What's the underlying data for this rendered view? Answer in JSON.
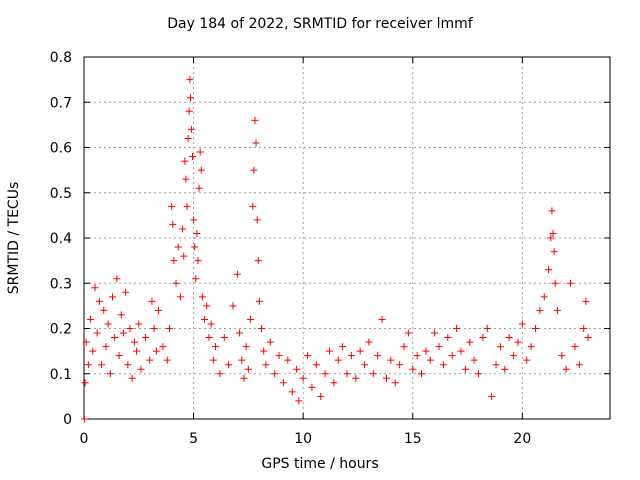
{
  "chart_data": {
    "type": "scatter",
    "title": "Day 184 of 2022, SRMTID for receiver lmmf",
    "xlabel": "GPS time / hours",
    "ylabel": "SRMTID / TECUs",
    "xlim": [
      0,
      24
    ],
    "ylim": [
      0,
      0.8
    ],
    "xticks": [
      0,
      5,
      10,
      15,
      20
    ],
    "yticks": [
      0,
      0.1,
      0.2,
      0.3,
      0.4,
      0.5,
      0.6,
      0.7,
      0.8
    ],
    "xtick_labels": [
      "0",
      "5",
      "10",
      "15",
      "20"
    ],
    "ytick_labels": [
      "0",
      "0.1",
      "0.2",
      "0.3",
      "0.4",
      "0.5",
      "0.6",
      "0.7",
      "0.8"
    ],
    "grid": true,
    "marker": "+",
    "color": "#ff0000",
    "x_data_range": [
      0,
      23.0
    ],
    "series": [
      {
        "name": "SRMTID",
        "points": [
          [
            0.02,
            0.0
          ],
          [
            0.05,
            0.08
          ],
          [
            0.1,
            0.17
          ],
          [
            0.2,
            0.12
          ],
          [
            0.3,
            0.22
          ],
          [
            0.4,
            0.15
          ],
          [
            0.5,
            0.29
          ],
          [
            0.6,
            0.19
          ],
          [
            0.7,
            0.26
          ],
          [
            0.8,
            0.12
          ],
          [
            0.9,
            0.24
          ],
          [
            1.0,
            0.16
          ],
          [
            1.1,
            0.21
          ],
          [
            1.2,
            0.1
          ],
          [
            1.3,
            0.27
          ],
          [
            1.4,
            0.18
          ],
          [
            1.5,
            0.31
          ],
          [
            1.6,
            0.14
          ],
          [
            1.7,
            0.23
          ],
          [
            1.8,
            0.19
          ],
          [
            1.9,
            0.28
          ],
          [
            2.0,
            0.12
          ],
          [
            2.1,
            0.2
          ],
          [
            2.2,
            0.09
          ],
          [
            2.3,
            0.17
          ],
          [
            2.4,
            0.15
          ],
          [
            2.5,
            0.21
          ],
          [
            2.6,
            0.11
          ],
          [
            2.8,
            0.18
          ],
          [
            3.0,
            0.13
          ],
          [
            3.1,
            0.26
          ],
          [
            3.2,
            0.2
          ],
          [
            3.3,
            0.15
          ],
          [
            3.4,
            0.24
          ],
          [
            3.6,
            0.16
          ],
          [
            3.8,
            0.13
          ],
          [
            3.9,
            0.2
          ],
          [
            4.0,
            0.47
          ],
          [
            4.05,
            0.43
          ],
          [
            4.1,
            0.35
          ],
          [
            4.2,
            0.3
          ],
          [
            4.3,
            0.38
          ],
          [
            4.4,
            0.27
          ],
          [
            4.5,
            0.42
          ],
          [
            4.55,
            0.36
          ],
          [
            4.6,
            0.57
          ],
          [
            4.65,
            0.53
          ],
          [
            4.7,
            0.47
          ],
          [
            4.75,
            0.62
          ],
          [
            4.8,
            0.68
          ],
          [
            4.83,
            0.75
          ],
          [
            4.86,
            0.71
          ],
          [
            4.9,
            0.64
          ],
          [
            4.95,
            0.58
          ],
          [
            5.0,
            0.44
          ],
          [
            5.05,
            0.38
          ],
          [
            5.1,
            0.31
          ],
          [
            5.15,
            0.41
          ],
          [
            5.2,
            0.35
          ],
          [
            5.25,
            0.51
          ],
          [
            5.3,
            0.59
          ],
          [
            5.35,
            0.55
          ],
          [
            5.4,
            0.27
          ],
          [
            5.5,
            0.22
          ],
          [
            5.6,
            0.25
          ],
          [
            5.7,
            0.18
          ],
          [
            5.8,
            0.21
          ],
          [
            5.9,
            0.13
          ],
          [
            6.0,
            0.16
          ],
          [
            6.2,
            0.1
          ],
          [
            6.4,
            0.18
          ],
          [
            6.6,
            0.12
          ],
          [
            6.8,
            0.25
          ],
          [
            7.0,
            0.32
          ],
          [
            7.1,
            0.19
          ],
          [
            7.2,
            0.13
          ],
          [
            7.3,
            0.09
          ],
          [
            7.4,
            0.16
          ],
          [
            7.5,
            0.11
          ],
          [
            7.6,
            0.22
          ],
          [
            7.7,
            0.47
          ],
          [
            7.75,
            0.55
          ],
          [
            7.8,
            0.66
          ],
          [
            7.85,
            0.61
          ],
          [
            7.9,
            0.44
          ],
          [
            7.95,
            0.35
          ],
          [
            8.0,
            0.26
          ],
          [
            8.1,
            0.2
          ],
          [
            8.2,
            0.15
          ],
          [
            8.3,
            0.12
          ],
          [
            8.5,
            0.17
          ],
          [
            8.7,
            0.1
          ],
          [
            8.9,
            0.14
          ],
          [
            9.1,
            0.08
          ],
          [
            9.3,
            0.13
          ],
          [
            9.5,
            0.06
          ],
          [
            9.7,
            0.11
          ],
          [
            9.8,
            0.04
          ],
          [
            10.0,
            0.09
          ],
          [
            10.2,
            0.14
          ],
          [
            10.4,
            0.07
          ],
          [
            10.6,
            0.12
          ],
          [
            10.8,
            0.05
          ],
          [
            11.0,
            0.1
          ],
          [
            11.2,
            0.15
          ],
          [
            11.4,
            0.08
          ],
          [
            11.6,
            0.13
          ],
          [
            11.8,
            0.16
          ],
          [
            12.0,
            0.1
          ],
          [
            12.2,
            0.14
          ],
          [
            12.4,
            0.09
          ],
          [
            12.6,
            0.15
          ],
          [
            12.8,
            0.12
          ],
          [
            13.0,
            0.17
          ],
          [
            13.2,
            0.1
          ],
          [
            13.4,
            0.14
          ],
          [
            13.6,
            0.22
          ],
          [
            13.8,
            0.09
          ],
          [
            14.0,
            0.13
          ],
          [
            14.2,
            0.08
          ],
          [
            14.4,
            0.12
          ],
          [
            14.6,
            0.16
          ],
          [
            14.8,
            0.19
          ],
          [
            15.0,
            0.11
          ],
          [
            15.2,
            0.14
          ],
          [
            15.4,
            0.1
          ],
          [
            15.6,
            0.15
          ],
          [
            15.8,
            0.13
          ],
          [
            16.0,
            0.19
          ],
          [
            16.2,
            0.16
          ],
          [
            16.4,
            0.12
          ],
          [
            16.6,
            0.18
          ],
          [
            16.8,
            0.14
          ],
          [
            17.0,
            0.2
          ],
          [
            17.2,
            0.15
          ],
          [
            17.4,
            0.11
          ],
          [
            17.6,
            0.17
          ],
          [
            17.8,
            0.13
          ],
          [
            18.0,
            0.1
          ],
          [
            18.2,
            0.18
          ],
          [
            18.4,
            0.2
          ],
          [
            18.6,
            0.05
          ],
          [
            18.8,
            0.12
          ],
          [
            19.0,
            0.16
          ],
          [
            19.2,
            0.11
          ],
          [
            19.4,
            0.18
          ],
          [
            19.6,
            0.14
          ],
          [
            19.8,
            0.17
          ],
          [
            20.0,
            0.21
          ],
          [
            20.2,
            0.13
          ],
          [
            20.4,
            0.16
          ],
          [
            20.6,
            0.2
          ],
          [
            20.8,
            0.24
          ],
          [
            21.0,
            0.27
          ],
          [
            21.2,
            0.33
          ],
          [
            21.3,
            0.4
          ],
          [
            21.35,
            0.46
          ],
          [
            21.4,
            0.41
          ],
          [
            21.45,
            0.37
          ],
          [
            21.5,
            0.3
          ],
          [
            21.6,
            0.24
          ],
          [
            21.8,
            0.14
          ],
          [
            22.0,
            0.11
          ],
          [
            22.2,
            0.3
          ],
          [
            22.4,
            0.16
          ],
          [
            22.6,
            0.12
          ],
          [
            22.8,
            0.2
          ],
          [
            22.9,
            0.26
          ],
          [
            23.0,
            0.18
          ]
        ]
      }
    ]
  }
}
